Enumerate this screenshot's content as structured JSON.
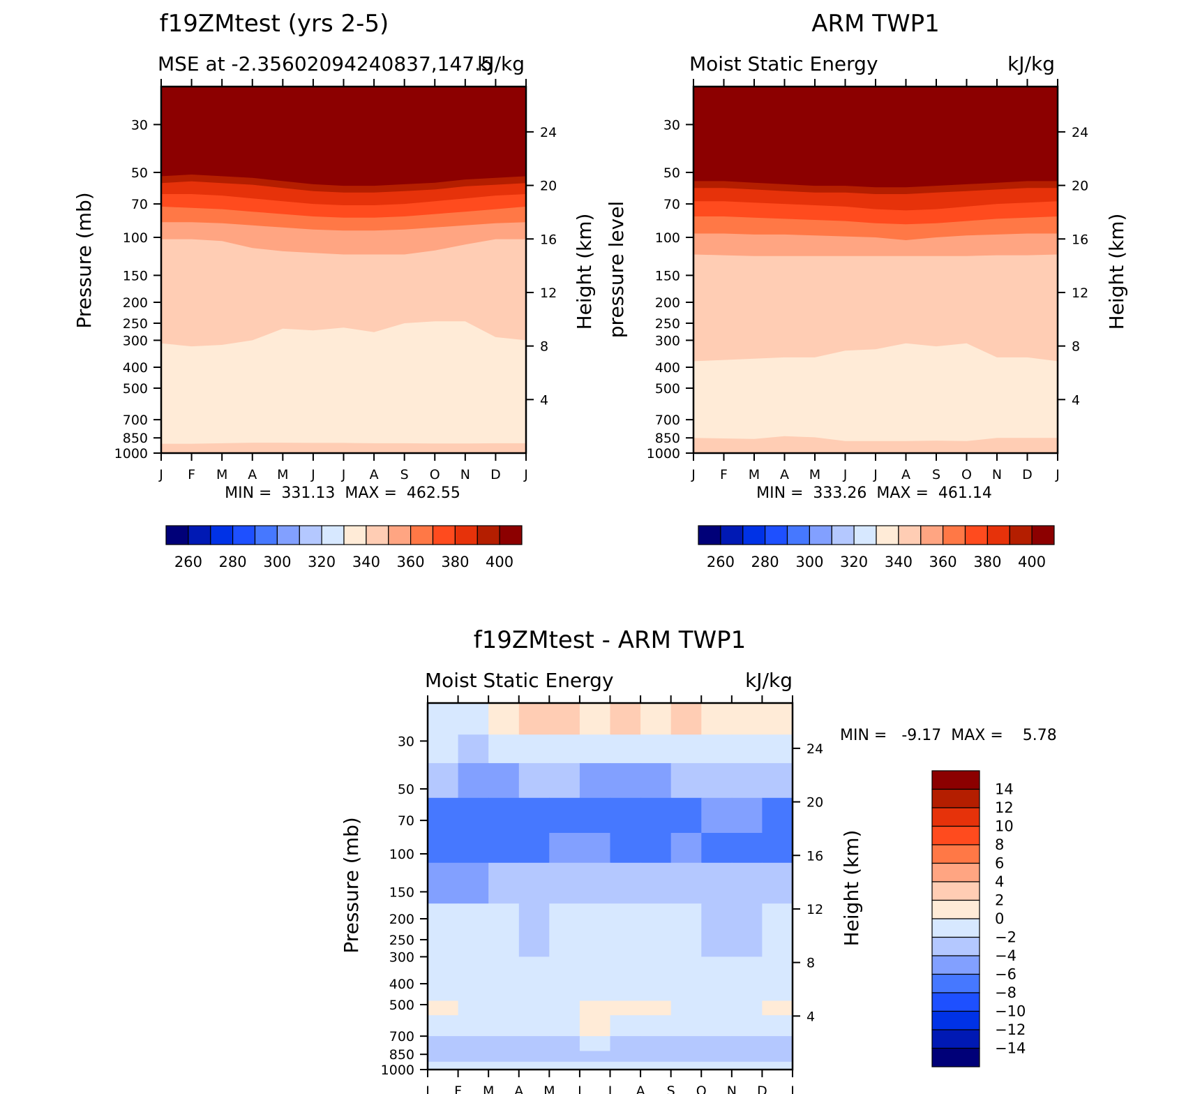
{
  "figure_title": "",
  "palette": [
    "#000078",
    "#0019b4",
    "#0032e6",
    "#1e50ff",
    "#4678ff",
    "#82a0ff",
    "#b4c8ff",
    "#d7e8ff",
    "#ffebd7",
    "#ffcdb4",
    "#ffa582",
    "#ff7846",
    "#ff4b1e",
    "#e6320a",
    "#b41e00",
    "#8c0000"
  ],
  "chart_data": [
    {
      "type": "heatmap",
      "plot_kind": "filled-contour",
      "title": "f19ZMtest (yrs 2-5)",
      "subtitle_left": "MSE at -2.35602094240837,147.5",
      "subtitle_right": "kJ/kg",
      "xlabel": "",
      "ylabel": "Pressure (mb)",
      "ylabel_right": "Height (km)",
      "x_ticks": [
        "J",
        "F",
        "M",
        "A",
        "M",
        "J",
        "J",
        "A",
        "S",
        "O",
        "N",
        "D",
        "J"
      ],
      "y_ticks_left": [
        30,
        50,
        70,
        100,
        150,
        200,
        250,
        300,
        400,
        500,
        700,
        850,
        1000
      ],
      "y_ticks_right": [
        24,
        20,
        16,
        12,
        8,
        4
      ],
      "y_scale": "log",
      "ylim": [
        1000,
        20
      ],
      "stats": "MIN =  331.13  MAX =  462.55",
      "levels": [
        250,
        260,
        270,
        280,
        290,
        300,
        310,
        320,
        330,
        340,
        350,
        360,
        370,
        380,
        390,
        400
      ],
      "colorbar_labels": [
        "260",
        "280",
        "300",
        "320",
        "340",
        "360",
        "380",
        "400"
      ],
      "colorbar_orientation": "horizontal",
      "boundaries": [
        {
          "value": 340,
          "pressure": [
            310,
            320,
            315,
            300,
            265,
            270,
            262,
            275,
            250,
            245,
            245,
            290,
            300
          ]
        },
        {
          "value": 350,
          "pressure": [
            102,
            102,
            104,
            112,
            116,
            118,
            120,
            120,
            120,
            115,
            108,
            102,
            102
          ]
        },
        {
          "value": 360,
          "pressure": [
            85,
            85,
            86,
            88,
            90,
            92,
            93,
            93,
            92,
            90,
            88,
            86,
            85
          ]
        },
        {
          "value": 370,
          "pressure": [
            72,
            73,
            74,
            76,
            78,
            80,
            81,
            81,
            80,
            78,
            76,
            74,
            72
          ]
        },
        {
          "value": 380,
          "pressure": [
            63,
            63,
            64,
            66,
            68,
            70,
            71,
            71,
            70,
            68,
            66,
            64,
            63
          ]
        },
        {
          "value": 390,
          "pressure": [
            56,
            55,
            56,
            57,
            59,
            61,
            62,
            62,
            61,
            60,
            58,
            57,
            56
          ]
        }
      ],
      "surface_band": {
        "value": 340,
        "pressure": [
          905,
          905,
          900,
          895,
          895,
          897,
          897,
          900,
          900,
          902,
          902,
          900,
          900
        ]
      }
    },
    {
      "type": "heatmap",
      "plot_kind": "filled-contour",
      "title": "ARM TWP1",
      "subtitle_left": "Moist Static Energy",
      "subtitle_right": "kJ/kg",
      "xlabel": "",
      "ylabel": "pressure level",
      "ylabel_right": "Height (km)",
      "x_ticks": [
        "J",
        "F",
        "M",
        "A",
        "M",
        "J",
        "J",
        "A",
        "S",
        "O",
        "N",
        "D",
        "J"
      ],
      "y_ticks_left": [
        30,
        50,
        70,
        100,
        150,
        200,
        250,
        300,
        400,
        500,
        700,
        850,
        1000
      ],
      "y_ticks_right": [
        24,
        20,
        16,
        12,
        8,
        4
      ],
      "y_scale": "log",
      "ylim": [
        1000,
        20
      ],
      "stats": "MIN =  333.26  MAX =  461.14",
      "levels": [
        250,
        260,
        270,
        280,
        290,
        300,
        310,
        320,
        330,
        340,
        350,
        360,
        370,
        380,
        390,
        400
      ],
      "colorbar_labels": [
        "260",
        "280",
        "300",
        "320",
        "340",
        "360",
        "380",
        "400"
      ],
      "colorbar_orientation": "horizontal",
      "boundaries": [
        {
          "value": 340,
          "pressure": [
            375,
            370,
            365,
            360,
            360,
            335,
            330,
            310,
            320,
            310,
            360,
            360,
            375
          ]
        },
        {
          "value": 350,
          "pressure": [
            120,
            121,
            122,
            122,
            122,
            122,
            122,
            122,
            122,
            122,
            121,
            121,
            120
          ]
        },
        {
          "value": 360,
          "pressure": [
            96,
            96,
            97,
            97,
            98,
            99,
            100,
            103,
            100,
            98,
            97,
            96,
            96
          ]
        },
        {
          "value": 370,
          "pressure": [
            80,
            80,
            81,
            82,
            83,
            84,
            86,
            87,
            86,
            84,
            82,
            81,
            80
          ]
        },
        {
          "value": 380,
          "pressure": [
            68,
            68,
            69,
            70,
            71,
            72,
            74,
            75,
            74,
            72,
            70,
            69,
            68
          ]
        },
        {
          "value": 390,
          "pressure": [
            59,
            59,
            60,
            61,
            62,
            62,
            63,
            63,
            62,
            61,
            60,
            59,
            59
          ]
        }
      ],
      "surface_band": {
        "value": 340,
        "pressure": [
          850,
          855,
          860,
          835,
          845,
          880,
          880,
          880,
          875,
          880,
          850,
          850,
          850
        ]
      }
    },
    {
      "type": "heatmap",
      "plot_kind": "filled-contour",
      "title": "f19ZMtest - ARM TWP1",
      "subtitle_left": "Moist Static Energy",
      "subtitle_right": "kJ/kg",
      "xlabel": "",
      "ylabel": "Pressure (mb)",
      "ylabel_right": "Height (km)",
      "x_ticks": [
        "J",
        "F",
        "M",
        "A",
        "M",
        "J",
        "J",
        "A",
        "S",
        "O",
        "N",
        "D",
        "J"
      ],
      "y_ticks_left": [
        30,
        50,
        70,
        100,
        150,
        200,
        250,
        300,
        400,
        500,
        700,
        850,
        1000
      ],
      "y_ticks_right": [
        24,
        20,
        16,
        12,
        8,
        4
      ],
      "y_scale": "log",
      "ylim": [
        1000,
        20
      ],
      "stats": "MIN =   -9.17  MAX =    5.78",
      "levels": [
        -16,
        -14,
        -12,
        -10,
        -8,
        -6,
        -4,
        -2,
        0,
        2,
        4,
        6,
        8,
        10,
        12,
        14
      ],
      "colorbar_labels": [
        "14",
        "12",
        "10",
        "8",
        "6",
        "4",
        "2",
        "0",
        "−2",
        "−4",
        "−6",
        "−8",
        "−10",
        "−12",
        "−14"
      ],
      "colorbar_orientation": "vertical",
      "rows": [
        {
          "p": 20,
          "v": [
            1,
            -1,
            1,
            3,
            4,
            2,
            3,
            3,
            2,
            4,
            1,
            3,
            2
          ]
        },
        {
          "p": 28,
          "v": [
            0,
            -2,
            -1,
            1,
            2,
            1,
            1,
            1,
            0,
            2,
            0,
            1,
            0
          ]
        },
        {
          "p": 38,
          "v": [
            -2,
            -3,
            -3,
            -2,
            -2,
            -2,
            -3,
            -3,
            -2,
            -2,
            -2,
            -2,
            -2
          ]
        },
        {
          "p": 55,
          "v": [
            -5,
            -5,
            -6,
            -6,
            -6,
            -6,
            -6,
            -6,
            -6,
            -5,
            -4,
            -4,
            -4
          ]
        },
        {
          "p": 80,
          "v": [
            -9,
            -9,
            -9,
            -8,
            -7,
            -7,
            -7,
            -9,
            -7,
            -7,
            -8,
            -8,
            -9
          ]
        },
        {
          "p": 110,
          "v": [
            -6,
            -6,
            -6,
            -5,
            -5,
            -5,
            -5,
            -5,
            -5,
            -5,
            -5,
            -5,
            -6
          ]
        },
        {
          "p": 170,
          "v": [
            -3,
            -3,
            -3,
            -2,
            -3,
            -1,
            -1,
            -1,
            -1,
            -2,
            -3,
            -3,
            -2
          ]
        },
        {
          "p": 300,
          "v": [
            -1,
            -1,
            -1,
            -1,
            -3,
            -1,
            -1,
            -1,
            -1,
            -1,
            -3,
            -1,
            -1
          ]
        },
        {
          "p": 480,
          "v": [
            -1,
            -1,
            -1,
            -1,
            -1,
            -1,
            -1,
            -1,
            -1,
            -1,
            -1,
            -1,
            -1
          ]
        },
        {
          "p": 560,
          "v": [
            1,
            1,
            -1,
            1,
            -1,
            1,
            1,
            1,
            1,
            -1,
            -1,
            1,
            1
          ]
        },
        {
          "p": 700,
          "v": [
            -2,
            -2,
            -1,
            -2,
            -2,
            -1,
            -1,
            -2,
            -2,
            -1,
            -2,
            -2,
            -2
          ]
        },
        {
          "p": 820,
          "v": [
            -3,
            -3,
            -3,
            -4,
            -5,
            -3,
            -3,
            -3,
            -3,
            -3,
            -5,
            -4,
            -3
          ]
        },
        {
          "p": 920,
          "v": [
            -2,
            -2,
            -2,
            -2,
            -2,
            -2,
            -2,
            -2,
            -2,
            -2,
            -2,
            -2,
            -2
          ]
        },
        {
          "p": 1000,
          "v": [
            -1,
            -1,
            -1,
            1,
            1,
            1,
            1,
            1,
            1,
            1,
            -1,
            -1,
            -1
          ]
        }
      ]
    }
  ]
}
